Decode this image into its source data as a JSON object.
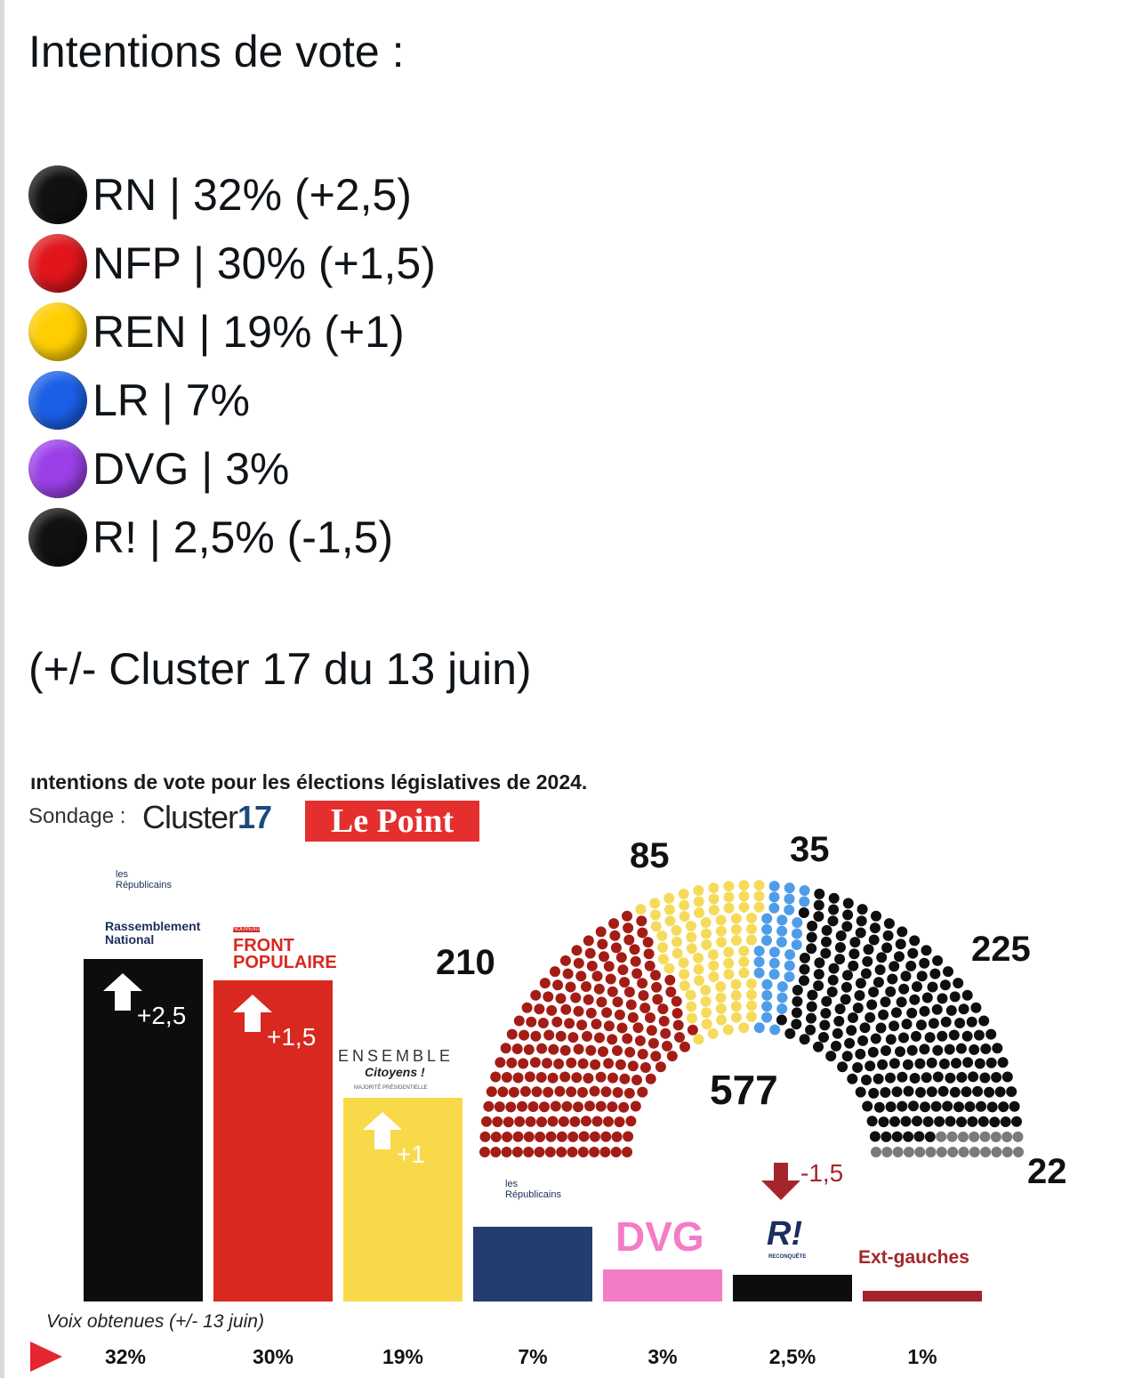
{
  "post": {
    "title": "Intentions de vote  :",
    "parties": [
      {
        "label": "RN | 32% (+2,5)",
        "color": "#111111",
        "icon": "black-circle-icon"
      },
      {
        "label": "NFP | 30% (+1,5)",
        "color": "#e0161b",
        "icon": "red-circle-icon"
      },
      {
        "label": "REN | 19% (+1)",
        "color": "#ffce00",
        "icon": "yellow-circle-icon"
      },
      {
        "label": "LR | 7%",
        "color": "#1a5fe6",
        "icon": "blue-circle-icon"
      },
      {
        "label": "DVG | 3%",
        "color": "#9b3fe8",
        "icon": "purple-circle-icon"
      },
      {
        "label": "R! | 2,5% (-1,5)",
        "color": "#111111",
        "icon": "black-circle-icon"
      }
    ],
    "footnote": "(+/- Cluster 17 du 13 juin)"
  },
  "infographic": {
    "title": "ıntentions de vote pour les élections législatives de 2024.",
    "sondage_label": "Sondage :",
    "cluster_prefix": "Cluster",
    "cluster_number": "17",
    "lepoint": "Le Point",
    "voix_label": "Voix obtenues (+/- 13 juin)",
    "logos": {
      "lr_top": "les Républicains",
      "rn": "Rassemblement National",
      "nfp": "FRONT POPULAIRE",
      "nfp_small": "NOUVEAU",
      "ensemble": "ENSEMBLE",
      "ensemble_sub": "Citoyens !",
      "ensemble_tag": "MAJORITÉ PRÉSIDENTIELLE",
      "lr": "les Républicains",
      "dvg": "DVG",
      "rec": "R!",
      "rec_sub": "RECONQUÊTE",
      "extg": "Ext-gauches"
    },
    "hemicycle_total": "577"
  },
  "chart_data": [
    {
      "type": "bar",
      "categories": [
        "RN",
        "NFP",
        "ENS",
        "LR",
        "DVG",
        "R!",
        "Ext-gauches"
      ],
      "values": [
        32,
        30,
        19,
        7,
        3,
        2.5,
        1
      ],
      "value_labels": [
        "32%",
        "30%",
        "19%",
        "7%",
        "3%",
        "2,5%",
        "1%"
      ],
      "deltas": [
        "+2,5",
        "+1,5",
        "+1",
        "",
        "",
        "-1,5",
        ""
      ],
      "colors": [
        "#0d0d0d",
        "#d8281f",
        "#f8d94a",
        "#223d6e",
        "#f47cc6",
        "#0d0d0d",
        "#a4262c"
      ]
    },
    {
      "type": "hemicycle",
      "total_seats": 577,
      "groups": [
        {
          "seats": 210,
          "label": "210",
          "color": "#a31d16"
        },
        {
          "seats": 85,
          "label": "85",
          "color": "#f6db5a"
        },
        {
          "seats": 35,
          "label": "35",
          "color": "#4f9de8"
        },
        {
          "seats": 225,
          "label": "225",
          "color": "#0f0f0f"
        },
        {
          "seats": 22,
          "label": "22",
          "color": "#7a7a7a"
        }
      ]
    }
  ]
}
